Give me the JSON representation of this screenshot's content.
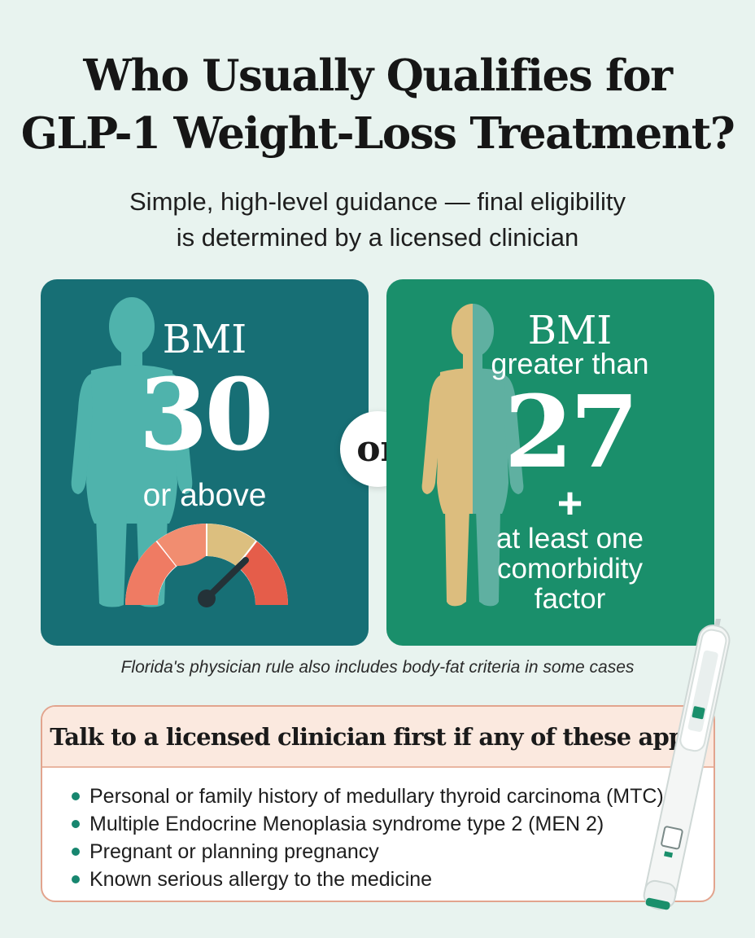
{
  "title": {
    "line1": "Who Usually Qualifies for",
    "line2": "GLP-1 Weight-Loss Treatment?"
  },
  "subtitle": {
    "line1": "Simple, high-level guidance — final eligibility",
    "line2": "is determined by a licensed clinician"
  },
  "left_card": {
    "label": "BMI",
    "value": "30",
    "qualifier": "or above",
    "icons": [
      "human-silhouette-icon",
      "bmi-gauge-icon"
    ]
  },
  "divider": {
    "text": "or"
  },
  "right_card": {
    "label": "BMI",
    "prefix": "greater than",
    "value": "27",
    "plus": "+",
    "line1": "at least one",
    "line2": "comorbidity",
    "line3": "factor",
    "icons": [
      "human-silhouette-icon"
    ]
  },
  "note": "Florida's physician rule also includes body-fat criteria in some cases",
  "warning": {
    "heading": "Talk to a licensed clinician first if any of these apply",
    "items": [
      "Personal or family history of medullary thyroid carcinoma (MTC)",
      "Multiple Endocrine Menoplasia syndrome type 2 (MEN 2)",
      "Pregnant or planning pregnancy",
      "Known serious allergy to the medicine"
    ]
  },
  "colors": {
    "background": "#e8f3ef",
    "left_card": "#176f75",
    "right_card": "#1a8f6b",
    "figure_teal": "#4fb3ac",
    "figure_tan": "#dcbd7e",
    "warning_border": "#e2a48e",
    "warning_header": "#fbe9df",
    "bullet": "#17866f"
  },
  "decor_icons": [
    "injection-pen-icon"
  ]
}
